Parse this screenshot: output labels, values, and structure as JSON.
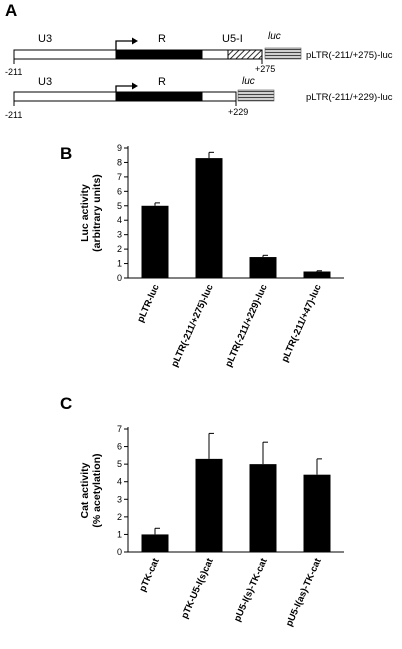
{
  "figure": {
    "panel_a": {
      "letter": "A",
      "constructs": [
        {
          "u3": "U3",
          "r": "R",
          "u5i": "U5-I",
          "luc": "luc",
          "start_coord": "-211",
          "end_coord": "+275",
          "name": "pLTR(-211/+275)-luc"
        },
        {
          "u3": "U3",
          "r": "R",
          "luc": "luc",
          "start_coord": "-211",
          "end_coord": "+229",
          "name": "pLTR(-211/+229)-luc"
        }
      ]
    },
    "panel_b": {
      "letter": "B"
    },
    "panel_c": {
      "letter": "C"
    }
  },
  "chart_data": [
    {
      "type": "bar",
      "categories": [
        "pLTR-luc",
        "pLTR(-211/+275)-luc",
        "pLTR(-211/+229)-luc",
        "pLTR(-211/+47)-luc"
      ],
      "values": [
        5.0,
        8.3,
        1.45,
        0.45
      ],
      "errors": [
        0.2,
        0.4,
        0.12,
        0.05
      ],
      "ylabel_line1": "Luc activity",
      "ylabel_line2": "(arbitrary units)",
      "ylim": [
        0,
        9
      ],
      "yticks": [
        "0",
        "1",
        "2",
        "3",
        "4",
        "5",
        "6",
        "7",
        "8",
        "9"
      ],
      "bar_color": "#000000"
    },
    {
      "type": "bar",
      "categories": [
        "pTK-cat",
        "pTK-U5-I(s)cat",
        "pU5-I(s)-TK-cat",
        "pU5-I(as)-TK-cat"
      ],
      "values": [
        1.0,
        5.3,
        5.0,
        4.4
      ],
      "errors": [
        0.35,
        1.45,
        1.25,
        0.9
      ],
      "ylabel_line1": "Cat activity",
      "ylabel_line2": "(% acetylation)",
      "ylim": [
        0,
        7
      ],
      "yticks": [
        "0",
        "1",
        "2",
        "3",
        "4",
        "5",
        "6",
        "7"
      ],
      "bar_color": "#000000"
    }
  ]
}
